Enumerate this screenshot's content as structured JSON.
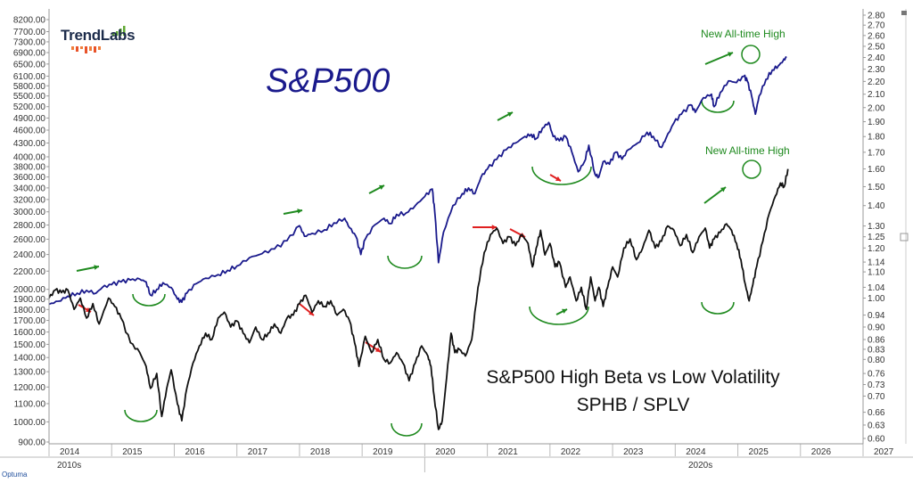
{
  "logo": {
    "text": "TrendLabs"
  },
  "labels": {
    "main_title": "S&P500",
    "ratio_title_line1": "S&P500 High Beta vs Low Volatility",
    "ratio_title_line2": "SPHB / SPLV",
    "ath_top": "New All-time High",
    "ath_bottom": "New All-time High",
    "corner_logo": "Optuma"
  },
  "colors": {
    "spx_line": "#1a1a8c",
    "ratio_line": "#111111",
    "up_arrow": "#1f8a1f",
    "down_arrow": "#e02020",
    "annotation_green": "#1f8a1f"
  },
  "chart_data": {
    "type": "line",
    "x_axis": {
      "year_ticks": [
        "2014",
        "2015",
        "2016",
        "2017",
        "2018",
        "2019",
        "2020",
        "2021",
        "2022",
        "2023",
        "2024",
        "2025",
        "2026",
        "2027"
      ],
      "decade_labels": [
        "2010s",
        "2020s"
      ],
      "range": [
        2014.0,
        2027.0
      ]
    },
    "left_axis": {
      "scale": "log",
      "ticks": [
        "900.00",
        "1000.00",
        "1100.00",
        "1200.00",
        "1300.00",
        "1400.00",
        "1500.00",
        "1600.00",
        "1700.00",
        "1800.00",
        "1900.00",
        "2000.00",
        "2200.00",
        "2400.00",
        "2600.00",
        "2800.00",
        "3000.00",
        "3200.00",
        "3400.00",
        "3600.00",
        "3800.00",
        "4000.00",
        "4300.00",
        "4600.00",
        "4900.00",
        "5200.00",
        "5500.00",
        "5800.00",
        "6100.00",
        "6500.00",
        "6900.00",
        "7300.00",
        "7700.00",
        "8200.00"
      ]
    },
    "right_axis": {
      "scale": "log",
      "ticks": [
        "0.60",
        "0.63",
        "0.66",
        "0.70",
        "0.73",
        "0.76",
        "0.80",
        "0.83",
        "0.86",
        "0.90",
        "0.94",
        "1.00",
        "1.04",
        "1.10",
        "1.14",
        "1.20",
        "1.25",
        "1.30",
        "1.40",
        "1.50",
        "1.60",
        "1.70",
        "1.80",
        "1.90",
        "2.00",
        "2.10",
        "2.20",
        "2.30",
        "2.40",
        "2.50",
        "2.60",
        "2.70",
        "2.80"
      ]
    },
    "series": [
      {
        "name": "S&P500",
        "axis": "left",
        "points": [
          [
            2014.0,
            1850
          ],
          [
            2014.15,
            1880
          ],
          [
            2014.3,
            1930
          ],
          [
            2014.45,
            1960
          ],
          [
            2014.6,
            1990
          ],
          [
            2014.75,
            1960
          ],
          [
            2014.85,
            2020
          ],
          [
            2015.0,
            2050
          ],
          [
            2015.15,
            2080
          ],
          [
            2015.3,
            2100
          ],
          [
            2015.45,
            2110
          ],
          [
            2015.55,
            2080
          ],
          [
            2015.62,
            1940
          ],
          [
            2015.72,
            2000
          ],
          [
            2015.82,
            2070
          ],
          [
            2015.95,
            2020
          ],
          [
            2016.05,
            1900
          ],
          [
            2016.12,
            1870
          ],
          [
            2016.2,
            1960
          ],
          [
            2016.35,
            2060
          ],
          [
            2016.5,
            2120
          ],
          [
            2016.7,
            2160
          ],
          [
            2016.85,
            2210
          ],
          [
            2017.0,
            2260
          ],
          [
            2017.2,
            2360
          ],
          [
            2017.4,
            2410
          ],
          [
            2017.6,
            2470
          ],
          [
            2017.8,
            2580
          ],
          [
            2018.0,
            2790
          ],
          [
            2018.08,
            2640
          ],
          [
            2018.2,
            2680
          ],
          [
            2018.4,
            2730
          ],
          [
            2018.55,
            2830
          ],
          [
            2018.72,
            2900
          ],
          [
            2018.8,
            2760
          ],
          [
            2018.9,
            2640
          ],
          [
            2018.98,
            2400
          ],
          [
            2019.05,
            2600
          ],
          [
            2019.2,
            2800
          ],
          [
            2019.35,
            2900
          ],
          [
            2019.45,
            2820
          ],
          [
            2019.55,
            2960
          ],
          [
            2019.7,
            2980
          ],
          [
            2019.85,
            3100
          ],
          [
            2020.0,
            3250
          ],
          [
            2020.12,
            3380
          ],
          [
            2020.16,
            3000
          ],
          [
            2020.22,
            2300
          ],
          [
            2020.3,
            2700
          ],
          [
            2020.45,
            3100
          ],
          [
            2020.6,
            3300
          ],
          [
            2020.7,
            3400
          ],
          [
            2020.8,
            3300
          ],
          [
            2020.9,
            3600
          ],
          [
            2021.0,
            3750
          ],
          [
            2021.15,
            3950
          ],
          [
            2021.3,
            4150
          ],
          [
            2021.45,
            4300
          ],
          [
            2021.6,
            4450
          ],
          [
            2021.7,
            4500
          ],
          [
            2021.78,
            4400
          ],
          [
            2021.88,
            4650
          ],
          [
            2021.98,
            4790
          ],
          [
            2022.05,
            4450
          ],
          [
            2022.15,
            4350
          ],
          [
            2022.25,
            4450
          ],
          [
            2022.35,
            4100
          ],
          [
            2022.45,
            3700
          ],
          [
            2022.55,
            3900
          ],
          [
            2022.62,
            4250
          ],
          [
            2022.72,
            3650
          ],
          [
            2022.78,
            3600
          ],
          [
            2022.85,
            3900
          ],
          [
            2022.95,
            3850
          ],
          [
            2023.05,
            4100
          ],
          [
            2023.15,
            3950
          ],
          [
            2023.25,
            4150
          ],
          [
            2023.4,
            4300
          ],
          [
            2023.55,
            4550
          ],
          [
            2023.65,
            4450
          ],
          [
            2023.78,
            4200
          ],
          [
            2023.85,
            4400
          ],
          [
            2023.98,
            4780
          ],
          [
            2024.1,
            5000
          ],
          [
            2024.25,
            5250
          ],
          [
            2024.32,
            5050
          ],
          [
            2024.45,
            5450
          ],
          [
            2024.58,
            5550
          ],
          [
            2024.62,
            5200
          ],
          [
            2024.72,
            5600
          ],
          [
            2024.85,
            5950
          ],
          [
            2024.98,
            5900
          ],
          [
            2025.1,
            6100
          ],
          [
            2025.15,
            5950
          ],
          [
            2025.22,
            5500
          ],
          [
            2025.28,
            5000
          ],
          [
            2025.34,
            5500
          ],
          [
            2025.45,
            6000
          ],
          [
            2025.55,
            6300
          ],
          [
            2025.65,
            6450
          ],
          [
            2025.72,
            6600
          ],
          [
            2025.78,
            6750
          ]
        ]
      },
      {
        "name": "SPHB / SPLV",
        "axis": "right",
        "points": [
          [
            2014.0,
            1.0
          ],
          [
            2014.1,
            1.03
          ],
          [
            2014.2,
            1.02
          ],
          [
            2014.3,
            1.03
          ],
          [
            2014.4,
            0.96
          ],
          [
            2014.5,
            1.0
          ],
          [
            2014.6,
            0.93
          ],
          [
            2014.7,
            0.98
          ],
          [
            2014.8,
            0.91
          ],
          [
            2014.95,
            1.0
          ],
          [
            2015.05,
            0.97
          ],
          [
            2015.15,
            0.93
          ],
          [
            2015.3,
            0.85
          ],
          [
            2015.45,
            0.82
          ],
          [
            2015.55,
            0.78
          ],
          [
            2015.62,
            0.72
          ],
          [
            2015.72,
            0.76
          ],
          [
            2015.8,
            0.65
          ],
          [
            2015.88,
            0.72
          ],
          [
            2015.95,
            0.77
          ],
          [
            2016.05,
            0.68
          ],
          [
            2016.12,
            0.64
          ],
          [
            2016.2,
            0.72
          ],
          [
            2016.3,
            0.79
          ],
          [
            2016.4,
            0.84
          ],
          [
            2016.5,
            0.88
          ],
          [
            2016.6,
            0.86
          ],
          [
            2016.7,
            0.93
          ],
          [
            2016.8,
            0.95
          ],
          [
            2016.9,
            0.9
          ],
          [
            2017.0,
            0.92
          ],
          [
            2017.1,
            0.88
          ],
          [
            2017.2,
            0.85
          ],
          [
            2017.3,
            0.9
          ],
          [
            2017.4,
            0.86
          ],
          [
            2017.5,
            0.88
          ],
          [
            2017.6,
            0.91
          ],
          [
            2017.7,
            0.88
          ],
          [
            2017.8,
            0.93
          ],
          [
            2017.9,
            0.94
          ],
          [
            2018.0,
            0.98
          ],
          [
            2018.1,
            1.01
          ],
          [
            2018.2,
            0.95
          ],
          [
            2018.3,
            0.99
          ],
          [
            2018.4,
            0.97
          ],
          [
            2018.5,
            0.99
          ],
          [
            2018.6,
            0.94
          ],
          [
            2018.7,
            0.96
          ],
          [
            2018.8,
            0.92
          ],
          [
            2018.88,
            0.85
          ],
          [
            2018.95,
            0.78
          ],
          [
            2019.05,
            0.87
          ],
          [
            2019.15,
            0.82
          ],
          [
            2019.25,
            0.86
          ],
          [
            2019.35,
            0.8
          ],
          [
            2019.45,
            0.79
          ],
          [
            2019.55,
            0.82
          ],
          [
            2019.65,
            0.79
          ],
          [
            2019.75,
            0.74
          ],
          [
            2019.85,
            0.79
          ],
          [
            2019.95,
            0.84
          ],
          [
            2020.05,
            0.81
          ],
          [
            2020.1,
            0.78
          ],
          [
            2020.15,
            0.7
          ],
          [
            2020.22,
            0.62
          ],
          [
            2020.28,
            0.64
          ],
          [
            2020.35,
            0.75
          ],
          [
            2020.42,
            0.88
          ],
          [
            2020.48,
            0.82
          ],
          [
            2020.55,
            0.83
          ],
          [
            2020.65,
            0.81
          ],
          [
            2020.75,
            0.86
          ],
          [
            2020.85,
            1.04
          ],
          [
            2020.95,
            1.18
          ],
          [
            2021.05,
            1.26
          ],
          [
            2021.15,
            1.29
          ],
          [
            2021.25,
            1.22
          ],
          [
            2021.35,
            1.25
          ],
          [
            2021.45,
            1.21
          ],
          [
            2021.55,
            1.26
          ],
          [
            2021.65,
            1.22
          ],
          [
            2021.72,
            1.12
          ],
          [
            2021.78,
            1.2
          ],
          [
            2021.85,
            1.28
          ],
          [
            2021.92,
            1.17
          ],
          [
            2022.0,
            1.22
          ],
          [
            2022.08,
            1.12
          ],
          [
            2022.15,
            1.14
          ],
          [
            2022.25,
            1.04
          ],
          [
            2022.32,
            1.08
          ],
          [
            2022.42,
            0.99
          ],
          [
            2022.5,
            1.04
          ],
          [
            2022.58,
            0.96
          ],
          [
            2022.65,
            1.08
          ],
          [
            2022.72,
            0.99
          ],
          [
            2022.78,
            1.04
          ],
          [
            2022.85,
            0.97
          ],
          [
            2022.92,
            1.04
          ],
          [
            2023.0,
            1.12
          ],
          [
            2023.08,
            1.08
          ],
          [
            2023.18,
            1.2
          ],
          [
            2023.28,
            1.24
          ],
          [
            2023.38,
            1.15
          ],
          [
            2023.48,
            1.2
          ],
          [
            2023.58,
            1.28
          ],
          [
            2023.68,
            1.2
          ],
          [
            2023.78,
            1.23
          ],
          [
            2023.88,
            1.3
          ],
          [
            2023.98,
            1.28
          ],
          [
            2024.08,
            1.21
          ],
          [
            2024.18,
            1.26
          ],
          [
            2024.28,
            1.18
          ],
          [
            2024.38,
            1.25
          ],
          [
            2024.48,
            1.29
          ],
          [
            2024.55,
            1.2
          ],
          [
            2024.62,
            1.24
          ],
          [
            2024.72,
            1.27
          ],
          [
            2024.82,
            1.31
          ],
          [
            2024.9,
            1.28
          ],
          [
            2024.98,
            1.22
          ],
          [
            2025.05,
            1.15
          ],
          [
            2025.12,
            1.05
          ],
          [
            2025.18,
            0.99
          ],
          [
            2025.24,
            1.05
          ],
          [
            2025.3,
            1.12
          ],
          [
            2025.4,
            1.23
          ],
          [
            2025.5,
            1.36
          ],
          [
            2025.6,
            1.45
          ],
          [
            2025.68,
            1.52
          ],
          [
            2025.74,
            1.5
          ],
          [
            2025.8,
            1.6
          ]
        ]
      }
    ]
  }
}
